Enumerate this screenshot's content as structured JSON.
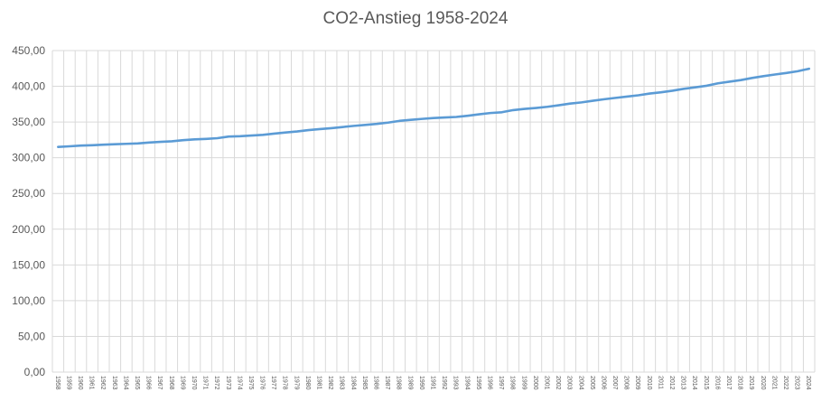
{
  "chart_data": {
    "type": "line",
    "title": "CO2-Anstieg 1958-2024",
    "xlabel": "",
    "ylabel": "",
    "ylim": [
      0,
      450
    ],
    "y_ticks": [
      "0,00",
      "50,00",
      "100,00",
      "150,00",
      "200,00",
      "250,00",
      "300,00",
      "350,00",
      "400,00",
      "450,00"
    ],
    "grid": true,
    "legend": "none",
    "line_color": "#5B9BD5",
    "categories": [
      "1958",
      "1959",
      "1960",
      "1961",
      "1962",
      "1963",
      "1964",
      "1965",
      "1966",
      "1967",
      "1968",
      "1969",
      "1970",
      "1971",
      "1972",
      "1973",
      "1974",
      "1975",
      "1976",
      "1977",
      "1978",
      "1979",
      "1980",
      "1981",
      "1982",
      "1983",
      "1984",
      "1985",
      "1986",
      "1987",
      "1988",
      "1989",
      "1990",
      "1991",
      "1992",
      "1993",
      "1994",
      "1995",
      "1996",
      "1997",
      "1998",
      "1999",
      "2000",
      "2001",
      "2002",
      "2003",
      "2004",
      "2005",
      "2006",
      "2007",
      "2008",
      "2009",
      "2010",
      "2011",
      "2012",
      "2013",
      "2014",
      "2015",
      "2016",
      "2017",
      "2018",
      "2019",
      "2020",
      "2021",
      "2022",
      "2023",
      "2024"
    ],
    "values": [
      315.2,
      316.0,
      317.0,
      317.5,
      318.3,
      318.9,
      319.5,
      320.0,
      321.3,
      322.2,
      323.0,
      324.6,
      325.7,
      326.4,
      327.4,
      329.7,
      330.2,
      331.1,
      332.0,
      333.8,
      335.4,
      336.8,
      338.7,
      340.1,
      341.4,
      343.0,
      344.6,
      346.0,
      347.4,
      349.2,
      351.6,
      353.1,
      354.4,
      355.6,
      356.4,
      357.1,
      358.8,
      360.8,
      362.6,
      363.7,
      366.7,
      368.4,
      369.7,
      371.3,
      373.4,
      375.8,
      377.5,
      379.8,
      381.9,
      383.8,
      385.6,
      387.4,
      389.9,
      391.6,
      393.8,
      396.5,
      398.6,
      400.8,
      404.2,
      406.5,
      408.7,
      411.7,
      414.2,
      416.5,
      418.6,
      421.1,
      424.6
    ]
  }
}
